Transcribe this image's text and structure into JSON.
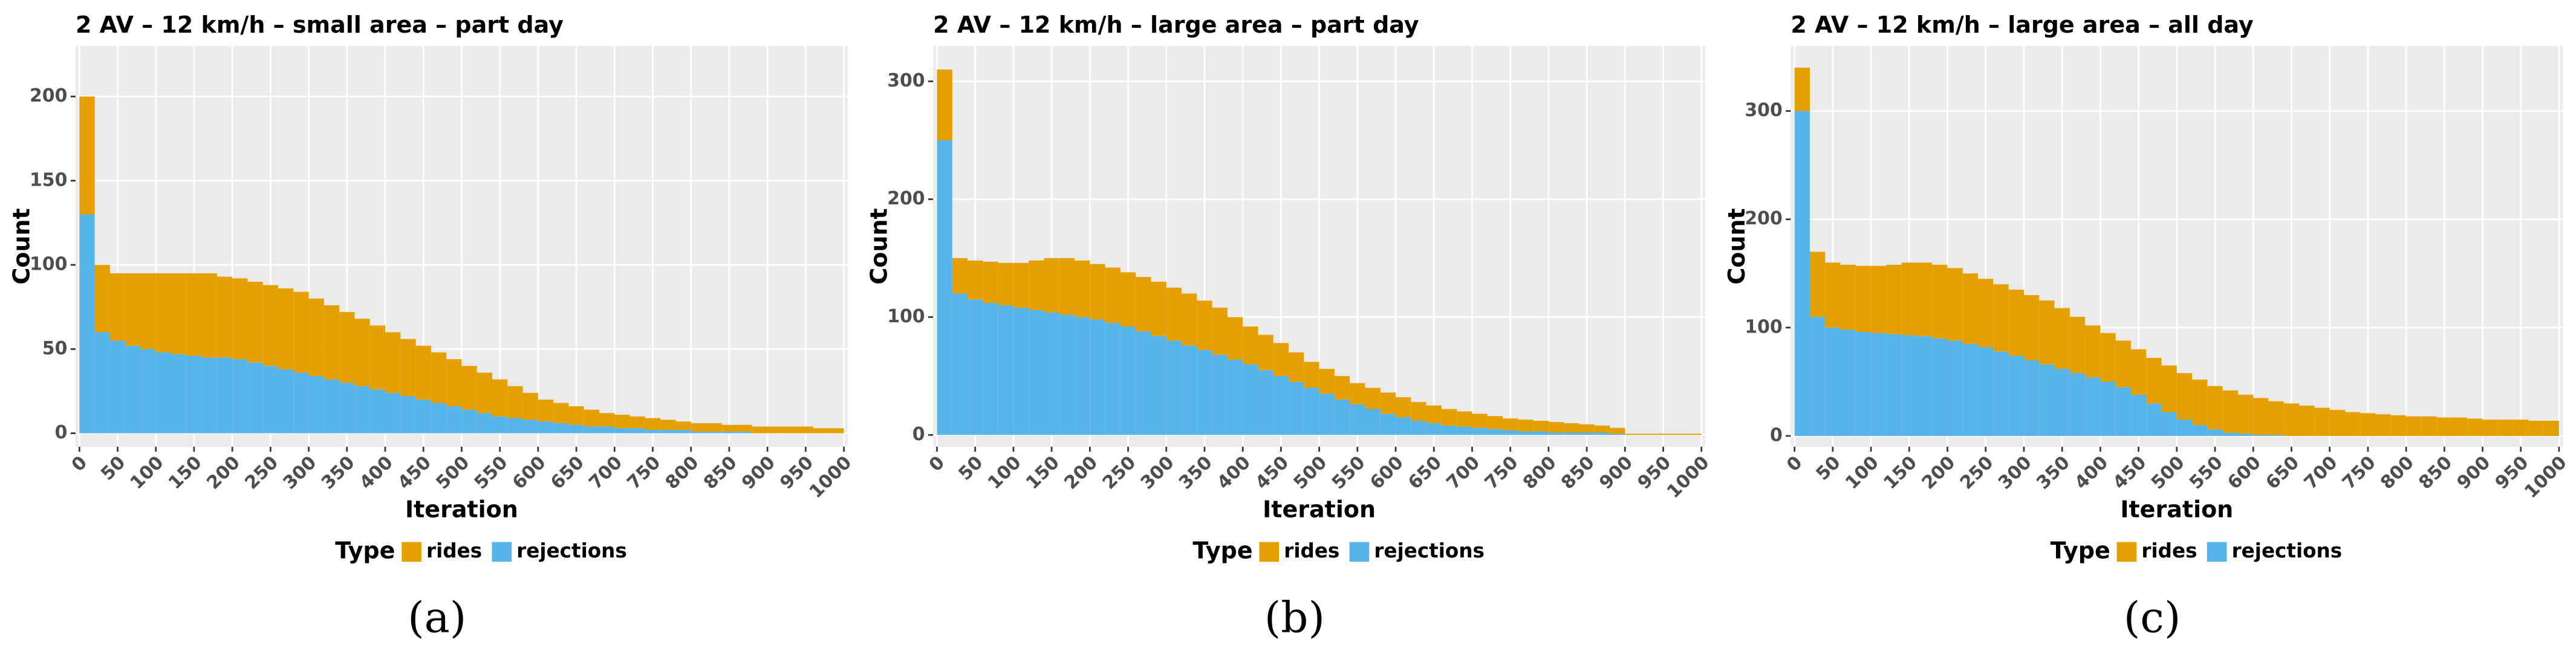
{
  "chart_data": [
    {
      "type": "bar",
      "stacked": true,
      "title": "2 AV – 12 km/h – small area – part day",
      "xlabel": "Iteration",
      "ylabel": "Count",
      "legend_title": "Type",
      "caption": "(a)",
      "x": [
        0,
        20,
        40,
        60,
        80,
        100,
        120,
        140,
        160,
        180,
        200,
        220,
        240,
        260,
        280,
        300,
        320,
        340,
        360,
        380,
        400,
        420,
        440,
        460,
        480,
        500,
        520,
        540,
        560,
        580,
        600,
        620,
        640,
        660,
        680,
        700,
        720,
        740,
        760,
        780,
        800,
        820,
        840,
        860,
        880,
        900,
        920,
        940,
        960,
        980
      ],
      "series": [
        {
          "name": "rejections",
          "color": "#56B4E9",
          "values": [
            130,
            60,
            55,
            52,
            50,
            48,
            47,
            46,
            45,
            45,
            44,
            42,
            40,
            38,
            36,
            34,
            32,
            30,
            28,
            26,
            24,
            22,
            20,
            18,
            16,
            14,
            12,
            10,
            9,
            8,
            7,
            6,
            5,
            4,
            4,
            3,
            3,
            2,
            2,
            2,
            1,
            1,
            1,
            1,
            0,
            0,
            0,
            0,
            0,
            0
          ]
        },
        {
          "name": "rides",
          "color": "#E69F00",
          "values": [
            70,
            40,
            40,
            43,
            45,
            47,
            48,
            49,
            50,
            48,
            48,
            48,
            48,
            48,
            48,
            46,
            44,
            42,
            40,
            38,
            36,
            34,
            32,
            30,
            28,
            26,
            24,
            22,
            19,
            16,
            13,
            12,
            11,
            10,
            8,
            8,
            7,
            7,
            6,
            5,
            5,
            5,
            4,
            4,
            4,
            4,
            4,
            4,
            3,
            3
          ]
        }
      ],
      "legend_order": [
        1,
        0
      ],
      "xlim": [
        -5,
        1005
      ],
      "ylim": [
        -8,
        230
      ],
      "xticks": [
        0,
        50,
        100,
        150,
        200,
        250,
        300,
        350,
        400,
        450,
        500,
        550,
        600,
        650,
        700,
        750,
        800,
        850,
        900,
        950,
        1000
      ],
      "yticks": [
        0,
        50,
        100,
        150,
        200
      ],
      "grid": true
    },
    {
      "type": "bar",
      "stacked": true,
      "title": "2 AV – 12 km/h – large area – part day",
      "xlabel": "Iteration",
      "ylabel": "Count",
      "legend_title": "Type",
      "caption": "(b)",
      "x": [
        0,
        20,
        40,
        60,
        80,
        100,
        120,
        140,
        160,
        180,
        200,
        220,
        240,
        260,
        280,
        300,
        320,
        340,
        360,
        380,
        400,
        420,
        440,
        460,
        480,
        500,
        520,
        540,
        560,
        580,
        600,
        620,
        640,
        660,
        680,
        700,
        720,
        740,
        760,
        780,
        800,
        820,
        840,
        860,
        880,
        900,
        920,
        940,
        960,
        980
      ],
      "series": [
        {
          "name": "rejections",
          "color": "#56B4E9",
          "values": [
            250,
            120,
            115,
            112,
            110,
            108,
            106,
            104,
            102,
            100,
            98,
            95,
            92,
            88,
            84,
            80,
            76,
            72,
            68,
            64,
            60,
            55,
            50,
            45,
            40,
            35,
            30,
            26,
            22,
            18,
            15,
            12,
            10,
            8,
            7,
            6,
            5,
            4,
            3,
            3,
            2,
            2,
            2,
            2,
            1,
            0,
            0,
            0,
            0,
            0
          ]
        },
        {
          "name": "rides",
          "color": "#E69F00",
          "values": [
            60,
            30,
            33,
            35,
            36,
            38,
            42,
            46,
            48,
            48,
            47,
            47,
            46,
            46,
            46,
            45,
            44,
            42,
            40,
            36,
            32,
            30,
            28,
            25,
            22,
            21,
            20,
            18,
            18,
            18,
            17,
            16,
            15,
            14,
            13,
            12,
            11,
            10,
            10,
            9,
            9,
            8,
            7,
            6,
            5,
            1,
            1,
            1,
            1,
            1
          ]
        }
      ],
      "legend_order": [
        1,
        0
      ],
      "xlim": [
        -5,
        1005
      ],
      "ylim": [
        -10,
        330
      ],
      "xticks": [
        0,
        50,
        100,
        150,
        200,
        250,
        300,
        350,
        400,
        450,
        500,
        550,
        600,
        650,
        700,
        750,
        800,
        850,
        900,
        950,
        1000
      ],
      "yticks": [
        0,
        100,
        200,
        300
      ],
      "grid": true
    },
    {
      "type": "bar",
      "stacked": true,
      "title": "2 AV – 12 km/h – large area – all day",
      "xlabel": "Iteration",
      "ylabel": "Count",
      "legend_title": "Type",
      "caption": "(c)",
      "x": [
        0,
        20,
        40,
        60,
        80,
        100,
        120,
        140,
        160,
        180,
        200,
        220,
        240,
        260,
        280,
        300,
        320,
        340,
        360,
        380,
        400,
        420,
        440,
        460,
        480,
        500,
        520,
        540,
        560,
        580,
        600,
        620,
        640,
        660,
        680,
        700,
        720,
        740,
        760,
        780,
        800,
        820,
        840,
        860,
        880,
        900,
        920,
        940,
        960,
        980
      ],
      "series": [
        {
          "name": "rejections",
          "color": "#56B4E9",
          "values": [
            300,
            110,
            100,
            98,
            96,
            95,
            94,
            93,
            92,
            90,
            88,
            85,
            82,
            78,
            74,
            70,
            66,
            62,
            58,
            54,
            50,
            45,
            38,
            30,
            22,
            15,
            10,
            6,
            3,
            2,
            1,
            1,
            0,
            0,
            0,
            0,
            0,
            0,
            0,
            0,
            0,
            0,
            0,
            0,
            0,
            0,
            0,
            0,
            0,
            0
          ]
        },
        {
          "name": "rides",
          "color": "#E69F00",
          "values": [
            40,
            60,
            60,
            60,
            61,
            62,
            64,
            67,
            68,
            68,
            67,
            65,
            63,
            62,
            61,
            60,
            59,
            56,
            52,
            48,
            45,
            43,
            42,
            42,
            43,
            43,
            42,
            40,
            39,
            36,
            34,
            31,
            30,
            28,
            26,
            24,
            22,
            21,
            20,
            19,
            18,
            18,
            17,
            17,
            16,
            15,
            15,
            15,
            14,
            14
          ]
        }
      ],
      "legend_order": [
        1,
        0
      ],
      "xlim": [
        -5,
        1005
      ],
      "ylim": [
        -10,
        360
      ],
      "xticks": [
        0,
        50,
        100,
        150,
        200,
        250,
        300,
        350,
        400,
        450,
        500,
        550,
        600,
        650,
        700,
        750,
        800,
        850,
        900,
        950,
        1000
      ],
      "yticks": [
        0,
        100,
        200,
        300
      ],
      "grid": true
    }
  ]
}
